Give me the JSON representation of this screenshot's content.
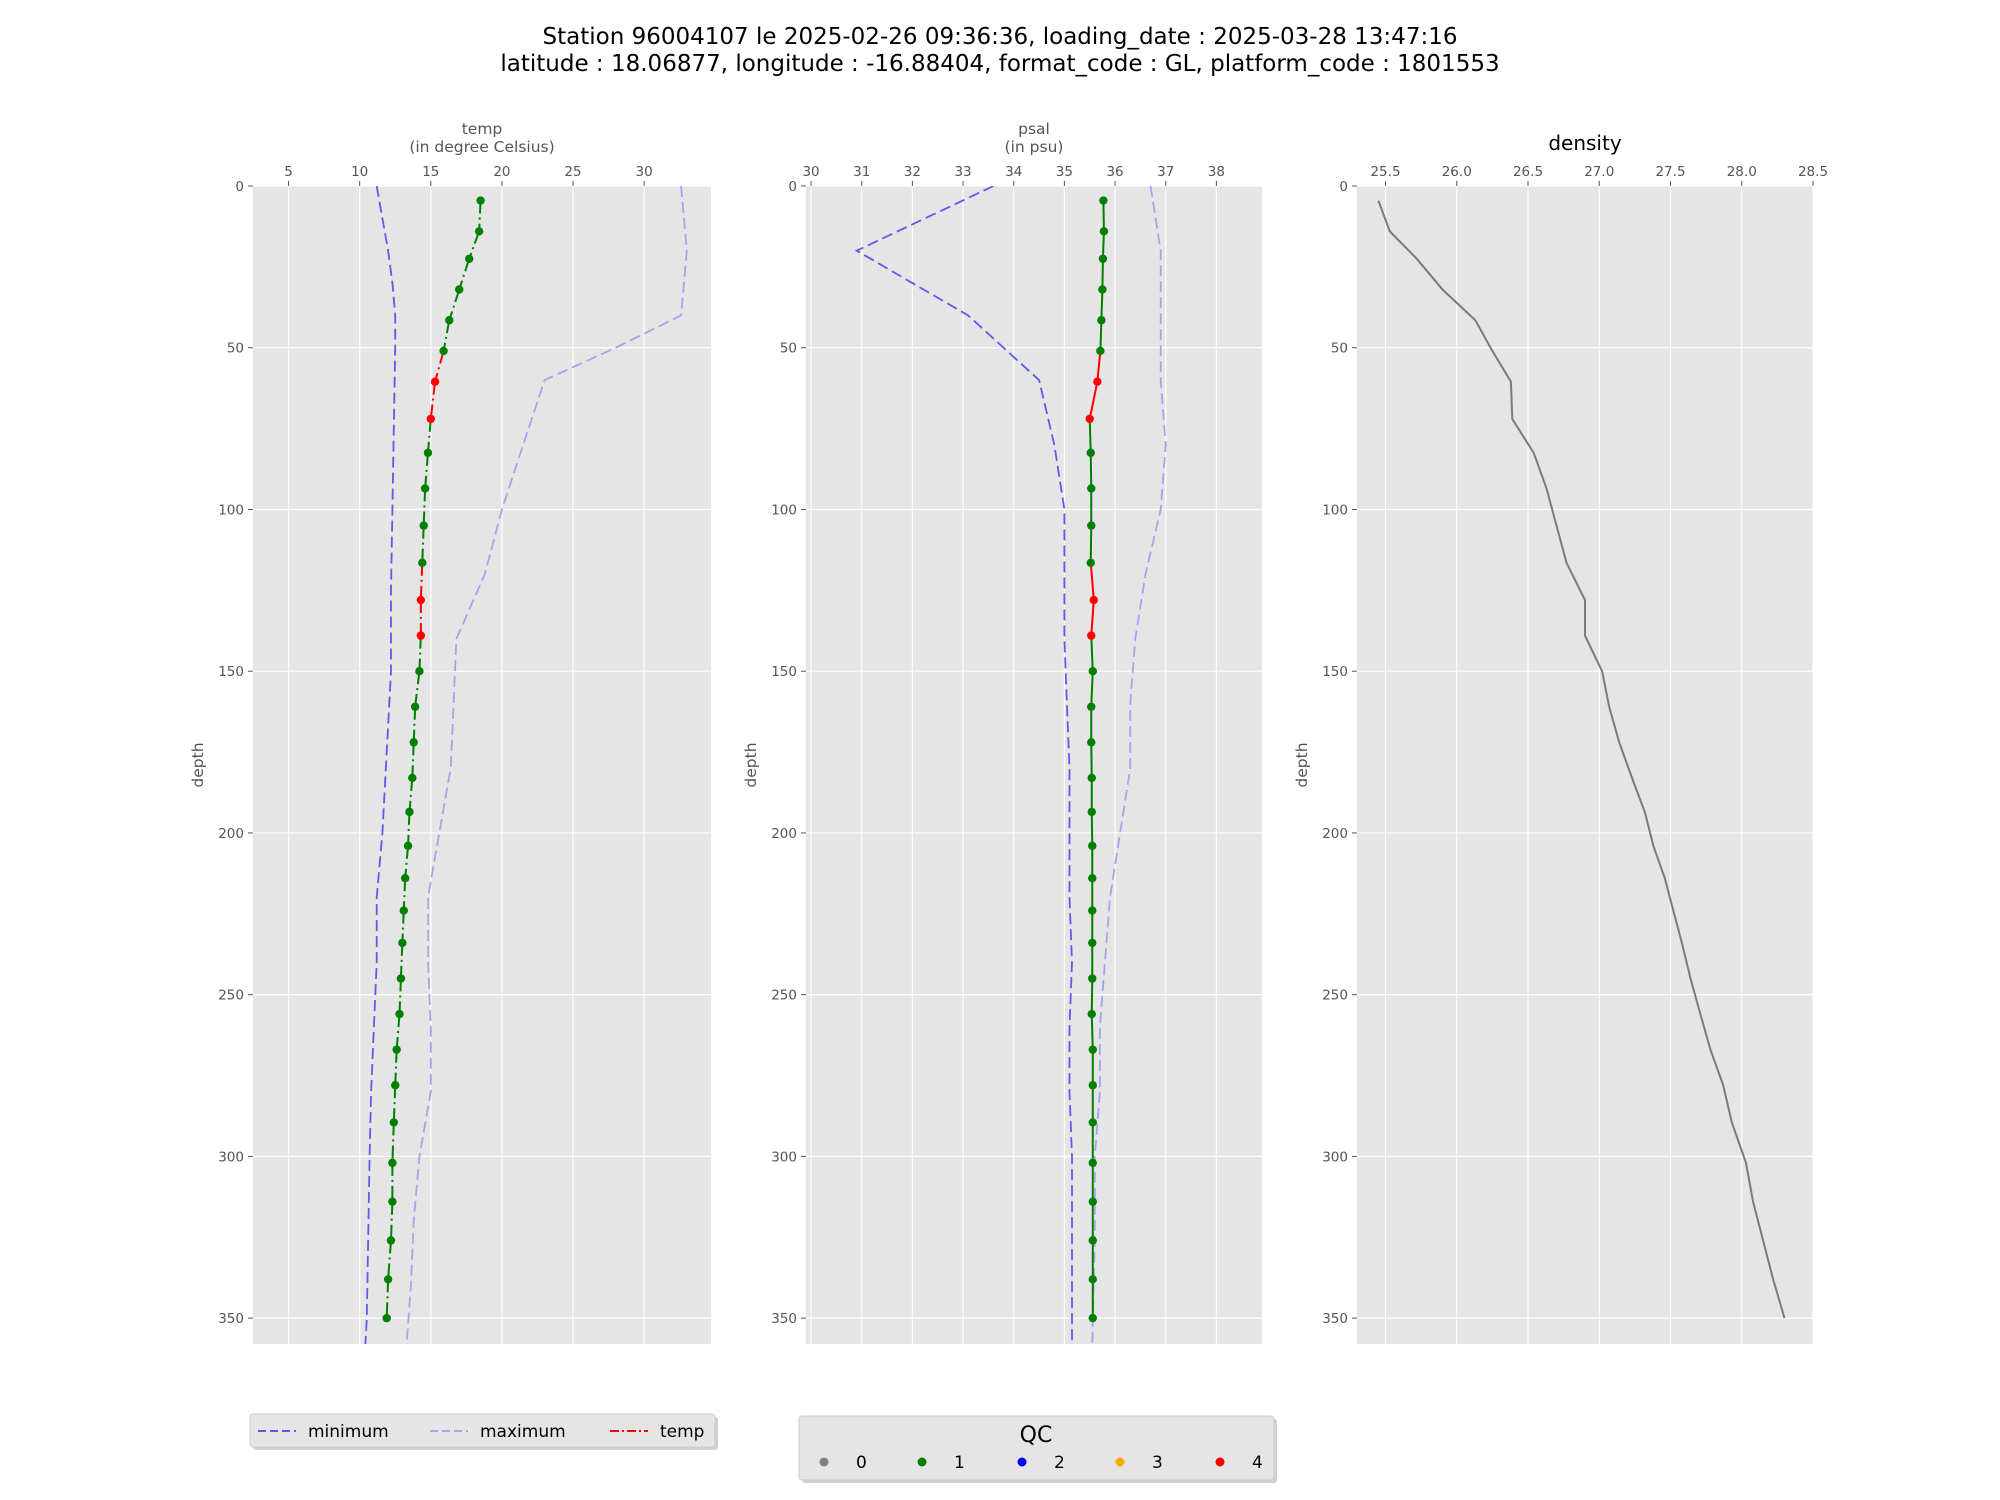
{
  "title": {
    "line1": "Station 96004107 le 2025-02-26 09:36:36, loading_date : 2025-03-28 13:47:16",
    "line2": "latitude : 18.06877, longitude : -16.88404, format_code : GL, platform_code : 1801553"
  },
  "colors": {
    "minimum": "#5b5bef",
    "maximum": "#a3a3ee",
    "density": "#7a7a7a",
    "plot_bg": "#e5e5e5",
    "grid": "#ffffff",
    "qc": {
      "0": "#808080",
      "1": "#007f00",
      "2": "#0000ff",
      "3": "#ffa500",
      "4": "#ff0000"
    }
  },
  "legend_lines": {
    "items": [
      {
        "label": "minimum",
        "style": "dashed",
        "color": "#5b5bef"
      },
      {
        "label": "maximum",
        "style": "dashed",
        "color": "#a3a3ee"
      },
      {
        "label": "temp",
        "style": "dashdot",
        "color": "#ff0000"
      }
    ]
  },
  "legend_qc": {
    "title": "QC",
    "items": [
      {
        "label": "0",
        "color": "#808080"
      },
      {
        "label": "1",
        "color": "#007f00"
      },
      {
        "label": "2",
        "color": "#0000ff"
      },
      {
        "label": "3",
        "color": "#ffa500"
      },
      {
        "label": "4",
        "color": "#ff0000"
      }
    ]
  },
  "chart_data": [
    {
      "type": "line",
      "xlabel": [
        "temp",
        "(in degree Celsius)"
      ],
      "ylabel": "depth",
      "xlim": [
        2.5,
        34.7
      ],
      "ylim": [
        358,
        0
      ],
      "xticks": [
        5,
        10,
        15,
        20,
        25,
        30
      ],
      "yticks": [
        0,
        50,
        100,
        150,
        200,
        250,
        300,
        350
      ],
      "grid": true,
      "series": [
        {
          "name": "minimum",
          "style": "dashed",
          "points": [
            [
              11.2,
              0
            ],
            [
              11.6,
              10
            ],
            [
              12.0,
              20
            ],
            [
              12.3,
              30
            ],
            [
              12.5,
              40
            ],
            [
              12.5,
              50
            ],
            [
              12.4,
              75
            ],
            [
              12.3,
              100
            ],
            [
              12.2,
              125
            ],
            [
              12.2,
              150
            ],
            [
              11.9,
              175
            ],
            [
              11.6,
              200
            ],
            [
              11.2,
              220
            ],
            [
              11.2,
              240
            ],
            [
              11.0,
              260
            ],
            [
              10.8,
              280
            ],
            [
              10.7,
              300
            ],
            [
              10.6,
              325
            ],
            [
              10.5,
              350
            ],
            [
              10.4,
              358
            ]
          ]
        },
        {
          "name": "maximum",
          "style": "dashed",
          "points": [
            [
              32.6,
              0
            ],
            [
              33.0,
              20
            ],
            [
              32.6,
              40
            ],
            [
              28.0,
              50
            ],
            [
              23.0,
              60
            ],
            [
              21.5,
              80
            ],
            [
              20.0,
              100
            ],
            [
              18.8,
              120
            ],
            [
              16.8,
              140
            ],
            [
              16.6,
              160
            ],
            [
              16.4,
              180
            ],
            [
              15.6,
              200
            ],
            [
              14.8,
              220
            ],
            [
              14.8,
              240
            ],
            [
              15.0,
              260
            ],
            [
              15.0,
              280
            ],
            [
              14.2,
              300
            ],
            [
              13.8,
              320
            ],
            [
              13.6,
              340
            ],
            [
              13.3,
              358
            ]
          ]
        },
        {
          "name": "temp",
          "style": "dashdot",
          "qc_colored": true,
          "points": [
            [
              18.5,
              4.5,
              1
            ],
            [
              18.4,
              14,
              1
            ],
            [
              17.7,
              22.5,
              1
            ],
            [
              17.0,
              32,
              1
            ],
            [
              16.3,
              41.5,
              1
            ],
            [
              15.9,
              51,
              1
            ],
            [
              15.3,
              60.5,
              4
            ],
            [
              15.0,
              72,
              4
            ],
            [
              14.8,
              82.5,
              1
            ],
            [
              14.6,
              93.5,
              1
            ],
            [
              14.5,
              105,
              1
            ],
            [
              14.4,
              116.5,
              1
            ],
            [
              14.3,
              128,
              4
            ],
            [
              14.3,
              139,
              4
            ],
            [
              14.2,
              150,
              1
            ],
            [
              13.9,
              161,
              1
            ],
            [
              13.8,
              172,
              1
            ],
            [
              13.7,
              183,
              1
            ],
            [
              13.5,
              193.5,
              1
            ],
            [
              13.4,
              204,
              1
            ],
            [
              13.2,
              214,
              1
            ],
            [
              13.1,
              224,
              1
            ],
            [
              13.0,
              234,
              1
            ],
            [
              12.9,
              245,
              1
            ],
            [
              12.8,
              256,
              1
            ],
            [
              12.6,
              267,
              1
            ],
            [
              12.5,
              278,
              1
            ],
            [
              12.4,
              289.5,
              1
            ],
            [
              12.3,
              302,
              1
            ],
            [
              12.3,
              314,
              1
            ],
            [
              12.2,
              326,
              1
            ],
            [
              12.0,
              338,
              1
            ],
            [
              11.9,
              350,
              1
            ]
          ]
        }
      ]
    },
    {
      "type": "line",
      "xlabel": [
        "psal",
        "(in psu)"
      ],
      "ylabel": "depth",
      "xlim": [
        29.9,
        38.9
      ],
      "ylim": [
        358,
        0
      ],
      "xticks": [
        30,
        31,
        32,
        33,
        34,
        35,
        36,
        37,
        38
      ],
      "yticks": [
        0,
        50,
        100,
        150,
        200,
        250,
        300,
        350
      ],
      "grid": true,
      "series": [
        {
          "name": "minimum",
          "style": "dashed",
          "points": [
            [
              33.6,
              0
            ],
            [
              30.9,
              20
            ],
            [
              33.1,
              40
            ],
            [
              34.5,
              60
            ],
            [
              34.8,
              80
            ],
            [
              35.0,
              100
            ],
            [
              35.0,
              120
            ],
            [
              35.0,
              140
            ],
            [
              35.05,
              160
            ],
            [
              35.1,
              180
            ],
            [
              35.1,
              200
            ],
            [
              35.1,
              220
            ],
            [
              35.15,
              240
            ],
            [
              35.1,
              260
            ],
            [
              35.1,
              280
            ],
            [
              35.15,
              300
            ],
            [
              35.15,
              325
            ],
            [
              35.15,
              358
            ]
          ]
        },
        {
          "name": "maximum",
          "style": "dashed",
          "points": [
            [
              36.7,
              0
            ],
            [
              36.9,
              20
            ],
            [
              36.9,
              40
            ],
            [
              36.9,
              60
            ],
            [
              37.0,
              80
            ],
            [
              36.9,
              100
            ],
            [
              36.6,
              120
            ],
            [
              36.4,
              140
            ],
            [
              36.3,
              160
            ],
            [
              36.3,
              180
            ],
            [
              36.1,
              200
            ],
            [
              35.9,
              220
            ],
            [
              35.8,
              240
            ],
            [
              35.7,
              260
            ],
            [
              35.7,
              280
            ],
            [
              35.6,
              300
            ],
            [
              35.6,
              325
            ],
            [
              35.55,
              358
            ]
          ]
        },
        {
          "name": "psal",
          "style": "solid",
          "qc_colored": true,
          "points": [
            [
              35.77,
              4.5,
              1
            ],
            [
              35.78,
              14,
              1
            ],
            [
              35.76,
              22.5,
              1
            ],
            [
              35.75,
              32,
              1
            ],
            [
              35.73,
              41.5,
              1
            ],
            [
              35.71,
              51,
              1
            ],
            [
              35.65,
              60.5,
              4
            ],
            [
              35.5,
              72,
              4
            ],
            [
              35.52,
              82.5,
              1
            ],
            [
              35.53,
              93.5,
              1
            ],
            [
              35.53,
              105,
              1
            ],
            [
              35.52,
              116.5,
              1
            ],
            [
              35.58,
              128,
              4
            ],
            [
              35.53,
              139,
              4
            ],
            [
              35.56,
              150,
              1
            ],
            [
              35.53,
              161,
              1
            ],
            [
              35.53,
              172,
              1
            ],
            [
              35.54,
              183,
              1
            ],
            [
              35.54,
              193.5,
              1
            ],
            [
              35.55,
              204,
              1
            ],
            [
              35.55,
              214,
              1
            ],
            [
              35.55,
              224,
              1
            ],
            [
              35.55,
              234,
              1
            ],
            [
              35.55,
              245,
              1
            ],
            [
              35.54,
              256,
              1
            ],
            [
              35.56,
              267,
              1
            ],
            [
              35.56,
              278,
              1
            ],
            [
              35.56,
              289.5,
              1
            ],
            [
              35.56,
              302,
              1
            ],
            [
              35.56,
              314,
              1
            ],
            [
              35.56,
              326,
              1
            ],
            [
              35.56,
              338,
              1
            ],
            [
              35.56,
              350,
              1
            ]
          ]
        }
      ]
    },
    {
      "type": "line",
      "title": "density",
      "ylabel": "depth",
      "xlim": [
        25.3,
        28.5
      ],
      "ylim": [
        358,
        0
      ],
      "xticks": [
        25.5,
        26.0,
        26.5,
        27.0,
        27.5,
        28.0,
        28.5
      ],
      "xtick_labels": [
        "25.5",
        "26.0",
        "26.5",
        "27.0",
        "27.5",
        "28.0",
        "28.5"
      ],
      "yticks": [
        0,
        50,
        100,
        150,
        200,
        250,
        300,
        350
      ],
      "grid": true,
      "series": [
        {
          "name": "density",
          "style": "solid",
          "points": [
            [
              25.45,
              4.5
            ],
            [
              25.53,
              14
            ],
            [
              25.72,
              22.5
            ],
            [
              25.9,
              32
            ],
            [
              26.13,
              41.5
            ],
            [
              26.25,
              51
            ],
            [
              26.38,
              60.5
            ],
            [
              26.39,
              72
            ],
            [
              26.54,
              82.5
            ],
            [
              26.63,
              93.5
            ],
            [
              26.7,
              105
            ],
            [
              26.77,
              116.5
            ],
            [
              26.9,
              128
            ],
            [
              26.9,
              139
            ],
            [
              27.02,
              150
            ],
            [
              27.07,
              161
            ],
            [
              27.14,
              172
            ],
            [
              27.23,
              183
            ],
            [
              27.32,
              193.5
            ],
            [
              27.38,
              204
            ],
            [
              27.46,
              214
            ],
            [
              27.52,
              224
            ],
            [
              27.58,
              234
            ],
            [
              27.64,
              245
            ],
            [
              27.71,
              256
            ],
            [
              27.78,
              267
            ],
            [
              27.87,
              278
            ],
            [
              27.93,
              289.5
            ],
            [
              28.03,
              302
            ],
            [
              28.08,
              314
            ],
            [
              28.15,
              326
            ],
            [
              28.22,
              338
            ],
            [
              28.3,
              350
            ]
          ]
        }
      ]
    }
  ]
}
